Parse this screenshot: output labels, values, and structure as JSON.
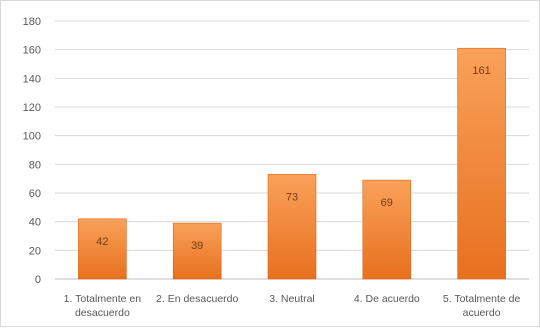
{
  "chart_data": {
    "type": "bar",
    "title": "",
    "xlabel": "",
    "ylabel": "",
    "categories": [
      [
        "1. Totalmente en",
        "desacuerdo"
      ],
      [
        "2. En desacuerdo"
      ],
      [
        "3. Neutral"
      ],
      [
        "4. De acuerdo"
      ],
      [
        "5. Totalmente de",
        "acuerdo"
      ]
    ],
    "values": [
      42,
      39,
      73,
      69,
      161
    ],
    "data_labels": [
      "42",
      "39",
      "73",
      "69",
      "161"
    ],
    "ylim": [
      0,
      180
    ],
    "yticks": [
      0,
      20,
      40,
      60,
      80,
      100,
      120,
      140,
      160,
      180
    ],
    "grid": true,
    "legend": "none",
    "colors": {
      "bar_top": "#f9a15a",
      "bar_bottom": "#e8701f",
      "bar_border": "#d9651a",
      "grid": "#d9d9d9"
    }
  }
}
